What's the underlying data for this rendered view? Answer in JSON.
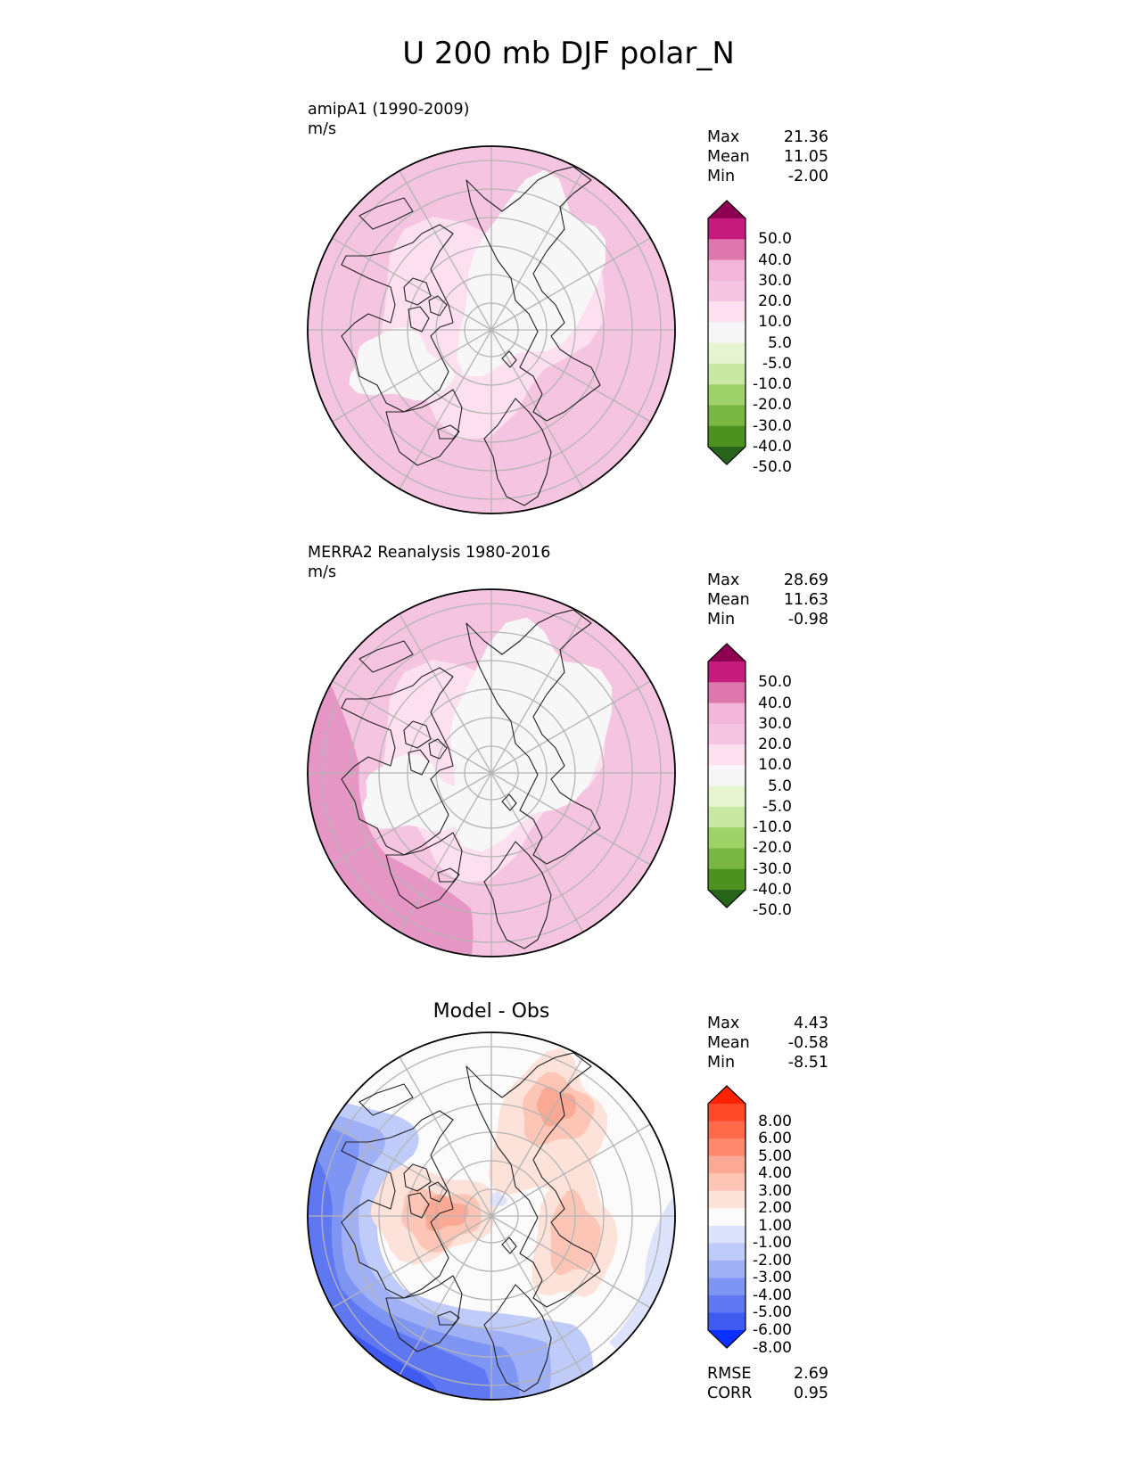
{
  "title": "U 200 mb DJF polar_N",
  "panels": [
    {
      "id": "model",
      "label_line1": "amipA1 (1990-2009)",
      "label_line2": "m/s",
      "stats": [
        {
          "name": "Max",
          "value": "21.36"
        },
        {
          "name": "Mean",
          "value": "11.05"
        },
        {
          "name": "Min",
          "value": "-2.00"
        }
      ],
      "colorbar": {
        "labels": [
          "50.0",
          "40.0",
          "30.0",
          "20.0",
          "10.0",
          "5.0",
          "-5.0",
          "-10.0",
          "-20.0",
          "-30.0",
          "-40.0",
          "-50.0"
        ],
        "colors": [
          "#8e0152",
          "#c51b7d",
          "#de77ae",
          "#f1b6da",
          "#f5c4e0",
          "#fde0ef",
          "#f7f7f7",
          "#e6f5d0",
          "#c9e8a4",
          "#a0d26a",
          "#7ab642",
          "#4d9221",
          "#276419"
        ]
      }
    },
    {
      "id": "obs",
      "label_line1": "MERRA2 Reanalysis 1980-2016",
      "label_line2": "m/s",
      "stats": [
        {
          "name": "Max",
          "value": "28.69"
        },
        {
          "name": "Mean",
          "value": "11.63"
        },
        {
          "name": "Min",
          "value": "-0.98"
        }
      ],
      "colorbar": {
        "labels": [
          "50.0",
          "40.0",
          "30.0",
          "20.0",
          "10.0",
          "5.0",
          "-5.0",
          "-10.0",
          "-20.0",
          "-30.0",
          "-40.0",
          "-50.0"
        ],
        "colors": [
          "#8e0152",
          "#c51b7d",
          "#de77ae",
          "#f1b6da",
          "#f5c4e0",
          "#fde0ef",
          "#f7f7f7",
          "#e6f5d0",
          "#c9e8a4",
          "#a0d26a",
          "#7ab642",
          "#4d9221",
          "#276419"
        ]
      }
    },
    {
      "id": "diff",
      "title": "Model - Obs",
      "stats": [
        {
          "name": "Max",
          "value": "4.43"
        },
        {
          "name": "Mean",
          "value": "-0.58"
        },
        {
          "name": "Min",
          "value": "-8.51"
        }
      ],
      "extra_stats": [
        {
          "name": "RMSE",
          "value": "2.69"
        },
        {
          "name": "CORR",
          "value": "0.95"
        }
      ],
      "colorbar": {
        "labels": [
          "8.00",
          "6.00",
          "5.00",
          "4.00",
          "3.00",
          "2.00",
          "1.00",
          "-1.00",
          "-2.00",
          "-3.00",
          "-4.00",
          "-5.00",
          "-6.00",
          "-8.00"
        ],
        "colors": [
          "#ff2200",
          "#ff4a2a",
          "#ff6a4a",
          "#ff8a6e",
          "#fba995",
          "#fcc5b6",
          "#fde2da",
          "#fbfbfb",
          "#dde3fb",
          "#bfcbf8",
          "#9fb0f6",
          "#7f95f4",
          "#5f78f2",
          "#3f5af0",
          "#0a30ff"
        ]
      }
    }
  ],
  "map": {
    "projection": "north polar stereographic",
    "model_fill": "#f5c4e0",
    "obs_fill": "#f5c4e0",
    "diff_fill": "#fbfbfb"
  }
}
